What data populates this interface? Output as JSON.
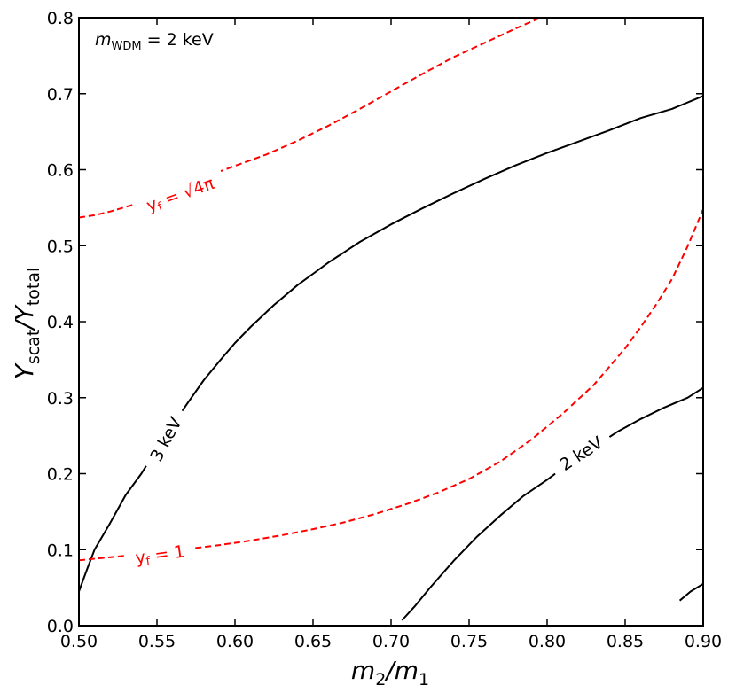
{
  "chart_data": {
    "type": "line",
    "title": "",
    "annotation": {
      "italic": "m",
      "sub": "WDM",
      "rest": " = 2 keV"
    },
    "xlabel": {
      "main1": "m",
      "sub1": "2",
      "slash": "/",
      "main2": "m",
      "sub2": "1"
    },
    "ylabel": {
      "main1": "Y",
      "sub1": "scat",
      "slash": "/",
      "main2": "Y",
      "sub2": "total"
    },
    "xlim": [
      0.5,
      0.9
    ],
    "ylim": [
      0.0,
      0.8
    ],
    "xticks": [
      "0.50",
      "0.55",
      "0.60",
      "0.65",
      "0.70",
      "0.75",
      "0.80",
      "0.85",
      "0.90"
    ],
    "yticks": [
      "0.0",
      "0.1",
      "0.2",
      "0.3",
      "0.4",
      "0.5",
      "0.6",
      "0.7",
      "0.8"
    ],
    "grid": false,
    "series": [
      {
        "name": "3 keV",
        "label_text": "3 keV",
        "style": "solid",
        "color": "#000000",
        "x": [
          0.5,
          0.505,
          0.51,
          0.52,
          0.53,
          0.54,
          0.55,
          0.56,
          0.57,
          0.58,
          0.59,
          0.6,
          0.61,
          0.625,
          0.64,
          0.65,
          0.66,
          0.68,
          0.7,
          0.72,
          0.74,
          0.76,
          0.78,
          0.8,
          0.82,
          0.84,
          0.86,
          0.88,
          0.9
        ],
        "y": [
          0.045,
          0.073,
          0.1,
          0.135,
          0.172,
          0.2,
          0.233,
          0.264,
          0.294,
          0.323,
          0.348,
          0.372,
          0.393,
          0.422,
          0.448,
          0.463,
          0.478,
          0.505,
          0.528,
          0.549,
          0.569,
          0.588,
          0.606,
          0.622,
          0.637,
          0.652,
          0.668,
          0.68,
          0.697
        ],
        "label_at": {
          "x": 0.556,
          "y": 0.245,
          "angle": -62
        }
      },
      {
        "name": "2 keV",
        "label_text": "2 keV",
        "style": "solid",
        "color": "#000000",
        "x": [
          0.707,
          0.715,
          0.725,
          0.74,
          0.755,
          0.77,
          0.785,
          0.8,
          0.815,
          0.83,
          0.845,
          0.86,
          0.875,
          0.89,
          0.9
        ],
        "y": [
          0.007,
          0.025,
          0.05,
          0.085,
          0.117,
          0.145,
          0.171,
          0.192,
          0.215,
          0.235,
          0.255,
          0.272,
          0.287,
          0.3,
          0.313
        ],
        "label_at": {
          "x": 0.822,
          "y": 0.226,
          "angle": -33
        }
      },
      {
        "name": "2 keV (lower-right segment)",
        "style": "solid",
        "color": "#000000",
        "x": [
          0.885,
          0.892,
          0.9
        ],
        "y": [
          0.033,
          0.045,
          0.055
        ]
      },
      {
        "name": "yf = sqrt(4π)",
        "label_text": {
          "main": "y",
          "sub": "f",
          "rest": " = √4π"
        },
        "style": "dashed",
        "color": "#ff0000",
        "x": [
          0.5,
          0.51,
          0.52,
          0.54,
          0.56,
          0.57,
          0.58,
          0.6,
          0.62,
          0.64,
          0.66,
          0.68,
          0.7,
          0.72,
          0.74,
          0.76,
          0.78,
          0.8
        ],
        "y": [
          0.537,
          0.54,
          0.545,
          0.557,
          0.571,
          0.58,
          0.59,
          0.605,
          0.62,
          0.638,
          0.658,
          0.68,
          0.703,
          0.726,
          0.748,
          0.767,
          0.786,
          0.804
        ],
        "label_at": {
          "x": 0.565,
          "y": 0.567,
          "angle": -20
        }
      },
      {
        "name": "yf = 1",
        "label_text": {
          "main": "y",
          "sub": "f",
          "rest": " = 1"
        },
        "style": "dashed",
        "color": "#ff0000",
        "x": [
          0.5,
          0.51,
          0.53,
          0.55,
          0.57,
          0.59,
          0.61,
          0.63,
          0.65,
          0.67,
          0.69,
          0.71,
          0.73,
          0.75,
          0.77,
          0.79,
          0.81,
          0.83,
          0.85,
          0.86,
          0.87,
          0.88,
          0.89,
          0.9
        ],
        "y": [
          0.086,
          0.088,
          0.092,
          0.096,
          0.101,
          0.106,
          0.112,
          0.119,
          0.127,
          0.136,
          0.147,
          0.16,
          0.175,
          0.193,
          0.216,
          0.245,
          0.279,
          0.317,
          0.365,
          0.393,
          0.423,
          0.456,
          0.499,
          0.548
        ],
        "label_at": {
          "x": 0.552,
          "y": 0.093,
          "angle": -8
        }
      }
    ]
  }
}
